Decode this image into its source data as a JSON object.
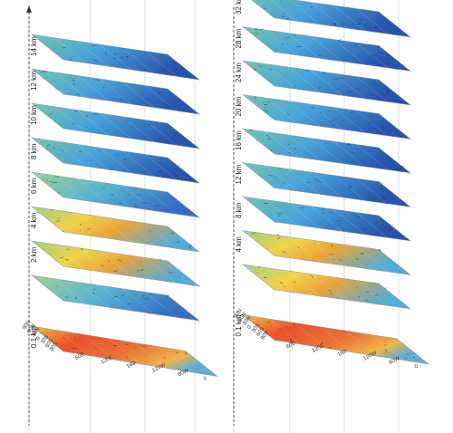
{
  "panels": [
    {
      "id": "left",
      "layers": [
        {
          "label": "14 km",
          "level": 0.3
        },
        {
          "label": "12 km",
          "level": 0.25
        },
        {
          "label": "10 km",
          "level": 0.28
        },
        {
          "label": "8 km",
          "level": 0.33
        },
        {
          "label": "6 km",
          "level": 0.42
        },
        {
          "label": "4 km",
          "level": 0.5
        },
        {
          "label": "2 km",
          "level": 0.45
        },
        {
          "label": "",
          "level": 0.38
        },
        {
          "label": "0.1 km",
          "level": 0.75
        }
      ],
      "lon_ticks": [
        "60E",
        "120E",
        "180",
        "120W",
        "60W",
        "0"
      ],
      "lat_ticks": [
        "90N",
        "60N",
        "30N",
        "0",
        "30S",
        "60S",
        "90S"
      ]
    },
    {
      "id": "right",
      "layers": [
        {
          "label": "32 km",
          "level": 0.2
        },
        {
          "label": "28 km",
          "level": 0.22
        },
        {
          "label": "24 km",
          "level": 0.2
        },
        {
          "label": "20 km",
          "level": 0.22
        },
        {
          "label": "16 km",
          "level": 0.25
        },
        {
          "label": "12 km",
          "level": 0.28
        },
        {
          "label": "8 km",
          "level": 0.33
        },
        {
          "label": "4 km",
          "level": 0.45
        },
        {
          "label": "",
          "level": 0.55
        },
        {
          "label": "0.1 km",
          "level": 0.78
        }
      ],
      "lon_ticks": [
        "60E",
        "120E",
        "180",
        "120W",
        "60W",
        "0"
      ],
      "lat_ticks": [
        "90N",
        "60N",
        "30N",
        "0",
        "30S",
        "60S",
        "90S"
      ]
    }
  ],
  "colors": {
    "low": "#1f4fb0",
    "mid": "#7ec8b0",
    "high": "#e8321e",
    "frame": "#b8bcc4",
    "coast": "#222222"
  }
}
